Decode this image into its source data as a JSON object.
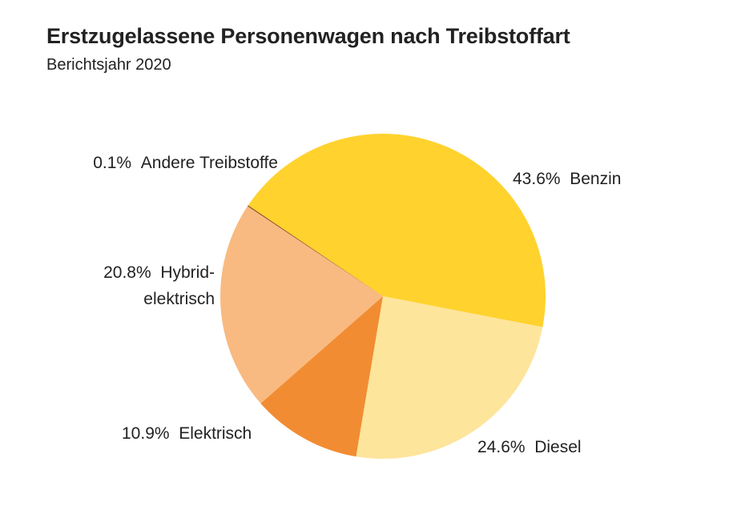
{
  "header": {
    "title": "Erstzugelassene Personenwagen nach Treibstoffart",
    "subtitle": "Berichtsjahr 2020"
  },
  "chart_data": {
    "type": "pie",
    "title": "Erstzugelassene Personenwagen nach Treibstoffart",
    "subtitle": "Berichtsjahr 2020",
    "unit": "%",
    "slices": [
      {
        "key": "benzin",
        "name": "Benzin",
        "value": 43.6,
        "pct_label": "43.6%",
        "label_lines": [
          "Benzin"
        ],
        "color": "#FFD22E"
      },
      {
        "key": "diesel",
        "name": "Diesel",
        "value": 24.6,
        "pct_label": "24.6%",
        "label_lines": [
          "Diesel"
        ],
        "color": "#FEE59C"
      },
      {
        "key": "elektrisch",
        "name": "Elektrisch",
        "value": 10.9,
        "pct_label": "10.9%",
        "label_lines": [
          "Elektrisch"
        ],
        "color": "#F28C32"
      },
      {
        "key": "hybrid",
        "name": "Hybrid-elektrisch",
        "value": 20.8,
        "pct_label": "20.8%",
        "label_lines": [
          "Hybrid-",
          "elektrisch"
        ],
        "color": "#F8BA80"
      },
      {
        "key": "andere",
        "name": "Andere Treibstoffe",
        "value": 0.1,
        "pct_label": "0.1%",
        "label_lines": [
          "Andere Treibstoffe"
        ],
        "color": "#8B4A1A"
      }
    ]
  }
}
